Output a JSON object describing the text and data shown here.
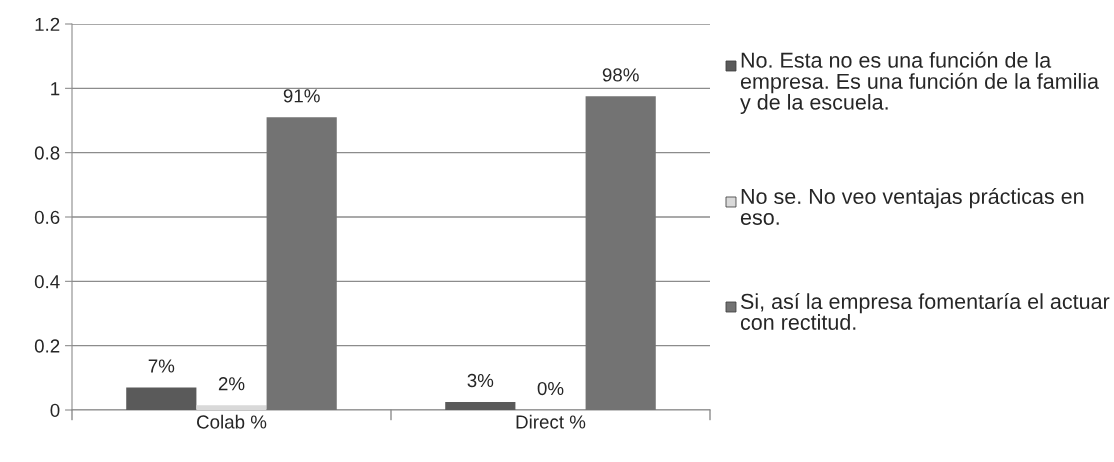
{
  "chart_data": {
    "type": "bar",
    "categories": [
      "Colab %",
      "Direct %"
    ],
    "series": [
      {
        "name": "No. Esta no es una función de la empresa. Es una función de la familia y de la escuela.",
        "color": "#5a5a5a",
        "values": [
          0.07,
          0.025
        ],
        "value_labels": [
          "7%",
          "3%"
        ]
      },
      {
        "name": "No se. No veo ventajas prácticas en eso.",
        "color": "#d9d9d9",
        "values": [
          0.015,
          0
        ],
        "value_labels": [
          "2%",
          "0%"
        ]
      },
      {
        "name": "Si, así la empresa fomentaría el actuar con rectitud.",
        "color": "#737373",
        "values": [
          0.91,
          0.975
        ],
        "value_labels": [
          "91%",
          "98%"
        ]
      }
    ],
    "ylim": [
      0,
      1.2
    ],
    "yticks": [
      0,
      0.2,
      0.4,
      0.6,
      0.8,
      1,
      1.2
    ],
    "grid": "y",
    "legend": "right"
  }
}
